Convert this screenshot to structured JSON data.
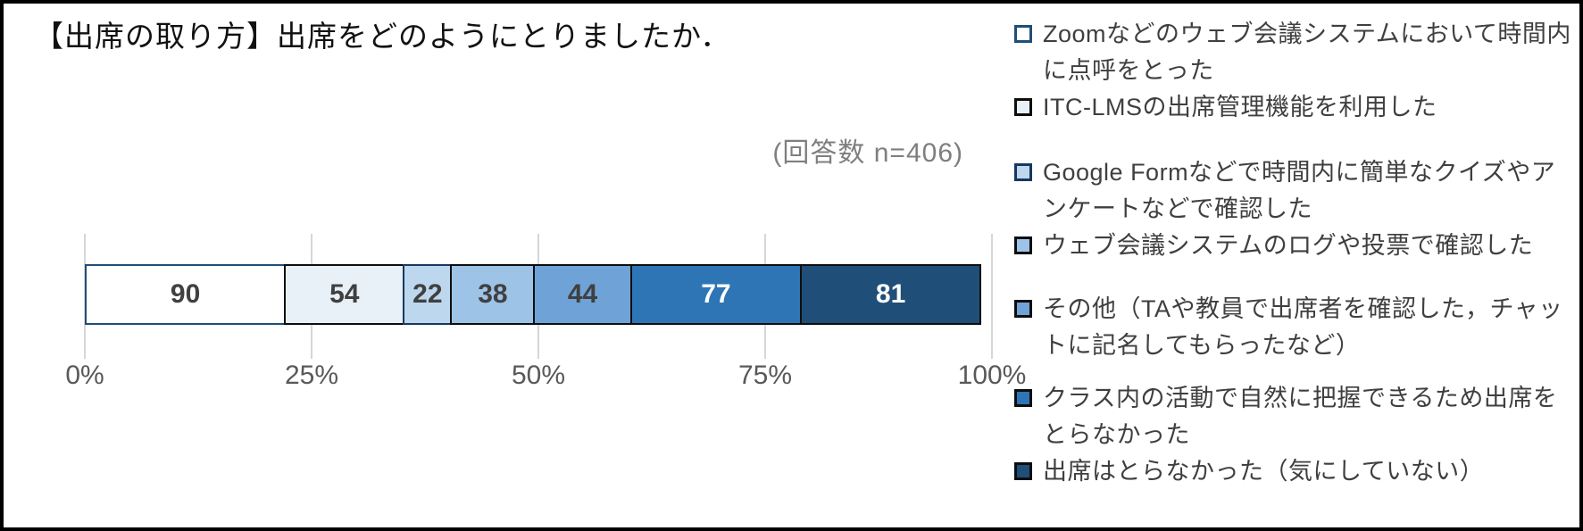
{
  "chart_data": {
    "type": "bar",
    "subtype": "100pct-stacked-horizontal",
    "title": "【出席の取り方】出席をどのようにとりましたか．",
    "annotation": "(回答数 n=406)",
    "n_total": 406,
    "x_ticks": [
      "0%",
      "25%",
      "50%",
      "75%",
      "100%"
    ],
    "xlim": [
      0,
      100
    ],
    "grid": true,
    "legend_position": "right",
    "segments": [
      {
        "label": "Zoomなどのウェブ会議システムにおいて時間内に点呼をとった",
        "value": 90,
        "fill": "#FFFFFF",
        "border": "#1F4E79",
        "text_color": "#404040"
      },
      {
        "label": "ITC-LMSの出席管理機能を利用した",
        "value": 54,
        "fill": "#E8F1F8",
        "border": "#0D0D0D",
        "text_color": "#404040"
      },
      {
        "label": "Google Formなどで時間内に簡単なクイズやアンケートなどで確認した",
        "value": 22,
        "fill": "#BDD7EE",
        "border": "#17375E",
        "text_color": "#404040"
      },
      {
        "label": "ウェブ会議システムのログや投票で確認した",
        "value": 38,
        "fill": "#9DC3E6",
        "border": "#0D0D0D",
        "text_color": "#404040"
      },
      {
        "label": "その他（TAや教員で出席者を確認した，チャットに記名してもらったなど）",
        "value": 44,
        "fill": "#6FA3D8",
        "border": "#0D0D0D",
        "text_color": "#404040"
      },
      {
        "label": "クラス内の活動で自然に把握できるため出席をとらなかった",
        "value": 77,
        "fill": "#2E75B6",
        "border": "#0D0D0D",
        "text_color": "#FFFFFF"
      },
      {
        "label": "出席はとらなかった（気にしていない）",
        "value": 81,
        "fill": "#1F4E79",
        "border": "#0D0D0D",
        "text_color": "#FFFFFF"
      }
    ]
  }
}
